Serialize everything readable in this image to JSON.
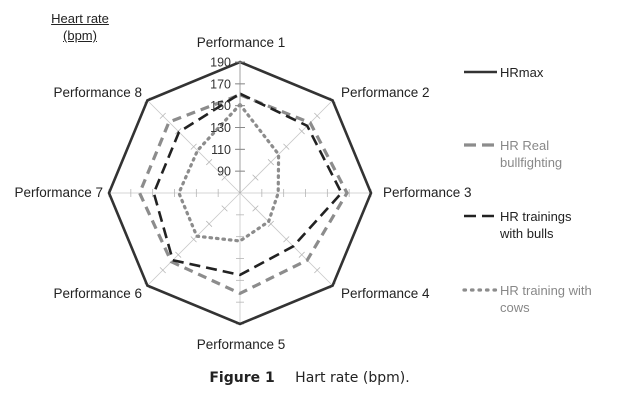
{
  "unit_label": {
    "line1": "Heart rate",
    "line2": "(bpm)"
  },
  "caption": {
    "number": "Figure 1",
    "text": "Hart rate (bpm)."
  },
  "chart_data": {
    "type": "radar",
    "title": "",
    "categories": [
      "Performance 1",
      "Performance 2",
      "Performance 3",
      "Performance 4",
      "Performance 5",
      "Performance 6",
      "Performance 7",
      "Performance 8"
    ],
    "r_ticks": [
      90,
      110,
      130,
      150,
      170,
      190
    ],
    "rlim": [
      70,
      190
    ],
    "grid": true,
    "legend_position": "right",
    "series": [
      {
        "name": "HRmax",
        "legend_lines": [
          "HRmax"
        ],
        "values": [
          190,
          190,
          190,
          190,
          190,
          190,
          190,
          190
        ],
        "color": "#333333",
        "style": "solid"
      },
      {
        "name": "HR Real bullfighting",
        "legend_lines": [
          "HR Real",
          "bullfighting"
        ],
        "values": [
          160,
          161,
          168,
          157,
          162,
          159,
          162,
          162
        ],
        "color": "#8c8c8c",
        "style": "dash"
      },
      {
        "name": "HR trainings with bulls",
        "legend_lines": [
          "HR trainings",
          "with bulls"
        ],
        "values": [
          161,
          157,
          163,
          139,
          145,
          157,
          149,
          149
        ],
        "color": "#222222",
        "style": "longdash"
      },
      {
        "name": "HR training with cows",
        "legend_lines": [
          "HR training with",
          "cows"
        ],
        "values": [
          151,
          120,
          105,
          107,
          114,
          126,
          126,
          125
        ],
        "color": "#8c8c8c",
        "style": "dot"
      }
    ]
  }
}
